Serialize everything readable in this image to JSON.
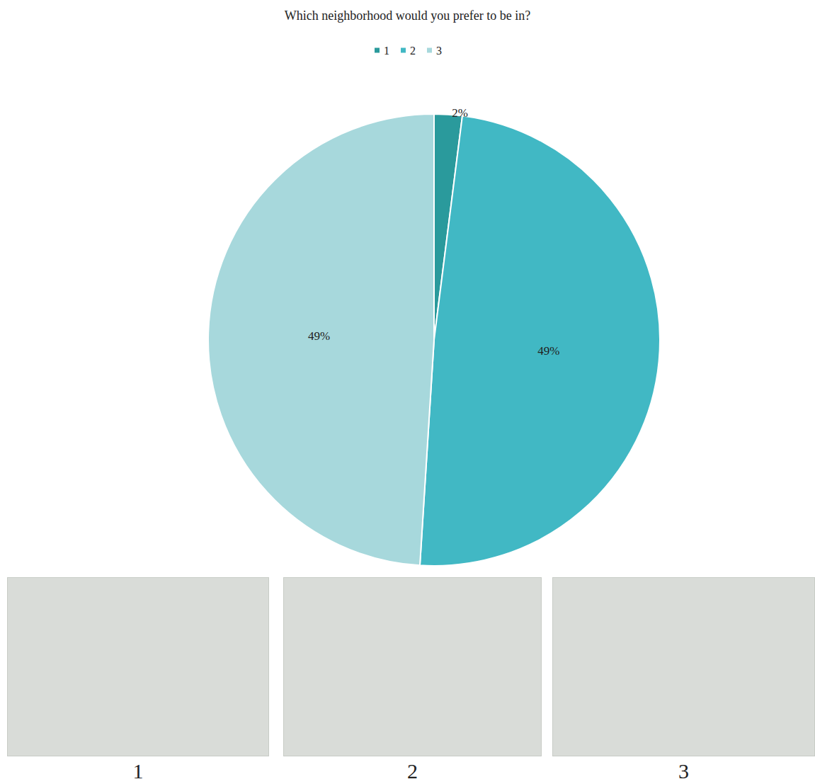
{
  "chart_data": {
    "type": "pie",
    "title": "Which neighborhood would you prefer to be in?",
    "categories": [
      "1",
      "2",
      "3"
    ],
    "values": [
      2,
      49,
      49
    ],
    "value_labels": [
      "2%",
      "49%",
      "49%"
    ],
    "colors": [
      "#2a9a9c",
      "#41b8c4",
      "#a7d8dc"
    ],
    "legend": "top",
    "data_labels": true,
    "annotations": [
      "1",
      "2",
      "3"
    ]
  }
}
